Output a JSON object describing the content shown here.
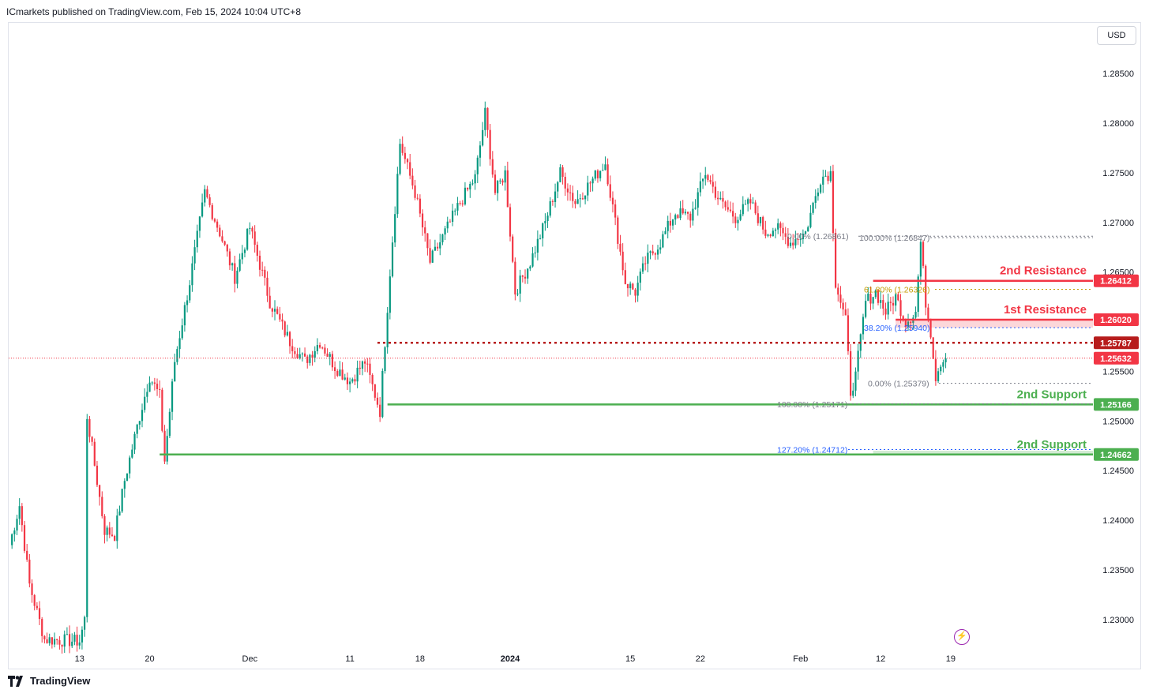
{
  "header": {
    "publisher": "ICmarkets published on TradingView.com, Feb 15, 2024 10:04 UTC+8"
  },
  "currency_button": "USD",
  "footer": {
    "brand": "TradingView",
    "logo_icon": "tradingview-logo-icon"
  },
  "colors": {
    "bull": "#089981",
    "bear": "#f23645",
    "resistance": "#f23645",
    "support": "#4caf50",
    "pivot": "#b71c1c",
    "fib_gray": "#787b86",
    "fib_blue": "#2962ff",
    "fib_gold": "#c49b00"
  },
  "chart_data": {
    "type": "candlestick",
    "ylim": [
      1.2272,
      1.2901
    ],
    "y_ticks": [
      "1.28500",
      "1.28000",
      "1.27500",
      "1.27000",
      "1.26500",
      "1.26000",
      "1.25500",
      "1.25000",
      "1.24500",
      "1.24000",
      "1.23500",
      "1.23000"
    ],
    "y_tick_values": [
      1.285,
      1.28,
      1.275,
      1.27,
      1.265,
      1.26,
      1.255,
      1.25,
      1.245,
      1.24,
      1.235,
      1.23
    ],
    "x_ticks": [
      {
        "label": "13",
        "bar": 28,
        "bold": false
      },
      {
        "label": "20",
        "bar": 56,
        "bold": false
      },
      {
        "label": "Dec",
        "bar": 96,
        "bold": false
      },
      {
        "label": "11",
        "bar": 136,
        "bold": false
      },
      {
        "label": "18",
        "bar": 164,
        "bold": false
      },
      {
        "label": "2024",
        "bar": 200,
        "bold": true
      },
      {
        "label": "15",
        "bar": 248,
        "bold": false
      },
      {
        "label": "22",
        "bar": 276,
        "bold": false
      },
      {
        "label": "Feb",
        "bar": 316,
        "bold": false
      },
      {
        "label": "12",
        "bar": 348,
        "bold": false
      },
      {
        "label": "19",
        "bar": 376,
        "bold": false
      }
    ],
    "bar_count": 385,
    "price_path": [
      [
        0,
        1.2375
      ],
      [
        4,
        1.2415
      ],
      [
        8,
        1.2335
      ],
      [
        14,
        1.228
      ],
      [
        28,
        1.2278
      ],
      [
        30,
        1.23
      ],
      [
        31,
        1.2505
      ],
      [
        38,
        1.239
      ],
      [
        42,
        1.2385
      ],
      [
        46,
        1.244
      ],
      [
        52,
        1.2505
      ],
      [
        56,
        1.2545
      ],
      [
        60,
        1.2525
      ],
      [
        62,
        1.246
      ],
      [
        66,
        1.256
      ],
      [
        72,
        1.264
      ],
      [
        78,
        1.273
      ],
      [
        84,
        1.269
      ],
      [
        90,
        1.2645
      ],
      [
        96,
        1.2695
      ],
      [
        104,
        1.262
      ],
      [
        112,
        1.258
      ],
      [
        118,
        1.256
      ],
      [
        124,
        1.258
      ],
      [
        130,
        1.2555
      ],
      [
        136,
        1.254
      ],
      [
        142,
        1.256
      ],
      [
        148,
        1.251
      ],
      [
        152,
        1.265
      ],
      [
        156,
        1.278
      ],
      [
        162,
        1.273
      ],
      [
        168,
        1.266
      ],
      [
        174,
        1.269
      ],
      [
        180,
        1.272
      ],
      [
        186,
        1.2745
      ],
      [
        190,
        1.281
      ],
      [
        194,
        1.273
      ],
      [
        198,
        1.275
      ],
      [
        202,
        1.263
      ],
      [
        208,
        1.266
      ],
      [
        214,
        1.27
      ],
      [
        220,
        1.275
      ],
      [
        226,
        1.272
      ],
      [
        232,
        1.274
      ],
      [
        238,
        1.276
      ],
      [
        242,
        1.27
      ],
      [
        246,
        1.264
      ],
      [
        250,
        1.263
      ],
      [
        254,
        1.266
      ],
      [
        260,
        1.268
      ],
      [
        266,
        1.271
      ],
      [
        272,
        1.2705
      ],
      [
        278,
        1.275
      ],
      [
        284,
        1.272
      ],
      [
        290,
        1.2705
      ],
      [
        296,
        1.272
      ],
      [
        302,
        1.269
      ],
      [
        306,
        1.2695
      ],
      [
        312,
        1.268
      ],
      [
        318,
        1.269
      ],
      [
        324,
        1.2745
      ],
      [
        328,
        1.275
      ],
      [
        330,
        1.264
      ],
      [
        334,
        1.26
      ],
      [
        336,
        1.253
      ],
      [
        338,
        1.2545
      ],
      [
        342,
        1.262
      ],
      [
        346,
        1.263
      ],
      [
        350,
        1.261
      ],
      [
        354,
        1.2625
      ],
      [
        358,
        1.26
      ],
      [
        362,
        1.261
      ],
      [
        364,
        1.268
      ],
      [
        366,
        1.262
      ],
      [
        368,
        1.259
      ],
      [
        370,
        1.2545
      ],
      [
        372,
        1.256
      ],
      [
        374,
        1.2563
      ]
    ],
    "last_price": 1.25632,
    "price_labels": [
      {
        "label": "1.26412",
        "value": 1.26412,
        "color": "#f23645"
      },
      {
        "label": "1.26020",
        "value": 1.2602,
        "color": "#f23645"
      },
      {
        "label": "1.25787",
        "value": 1.25787,
        "color": "#b71c1c"
      },
      {
        "label": "1.25632",
        "value": 1.25632,
        "color": "#f23645"
      },
      {
        "label": "1.25166",
        "value": 1.25166,
        "color": "#4caf50"
      },
      {
        "label": "1.24662",
        "value": 1.24662,
        "color": "#4caf50"
      }
    ],
    "levels": [
      {
        "name": "2nd Resistance",
        "value": 1.26412,
        "color": "#f23645",
        "style": "solid",
        "from_bar": 345
      },
      {
        "name": "1st Resistance",
        "value": 1.2602,
        "color": "#f23645",
        "style": "solid",
        "from_bar": 354
      },
      {
        "name": "",
        "value": 1.25787,
        "color": "#b71c1c",
        "style": "dotted",
        "from_bar": 147
      },
      {
        "name": "2nd Support",
        "value": 1.25166,
        "color": "#4caf50",
        "style": "solid",
        "from_bar": 151
      },
      {
        "name": "2nd Support",
        "value": 1.24662,
        "color": "#4caf50",
        "style": "solid",
        "from_bar": 60
      }
    ],
    "fib_annotations": [
      {
        "text": "0.00% (1.26861)",
        "value": 1.26861,
        "color": "#787b86"
      },
      {
        "text": "100.00% (1.26847)",
        "value": 1.26847,
        "color": "#787b86"
      },
      {
        "text": "61.80% (1.26326)",
        "value": 1.26326,
        "color": "#c49b00"
      },
      {
        "text": "38.20% (1.25940)",
        "value": 1.2594,
        "color": "#2962ff"
      },
      {
        "text": "0.00% (1.25379)",
        "value": 1.25379,
        "color": "#787b86"
      },
      {
        "text": "100.00% (1.25171)",
        "value": 1.25171,
        "color": "#787b86"
      },
      {
        "text": "127.20% (1.24712)",
        "value": 1.24712,
        "color": "#2962ff"
      }
    ]
  }
}
